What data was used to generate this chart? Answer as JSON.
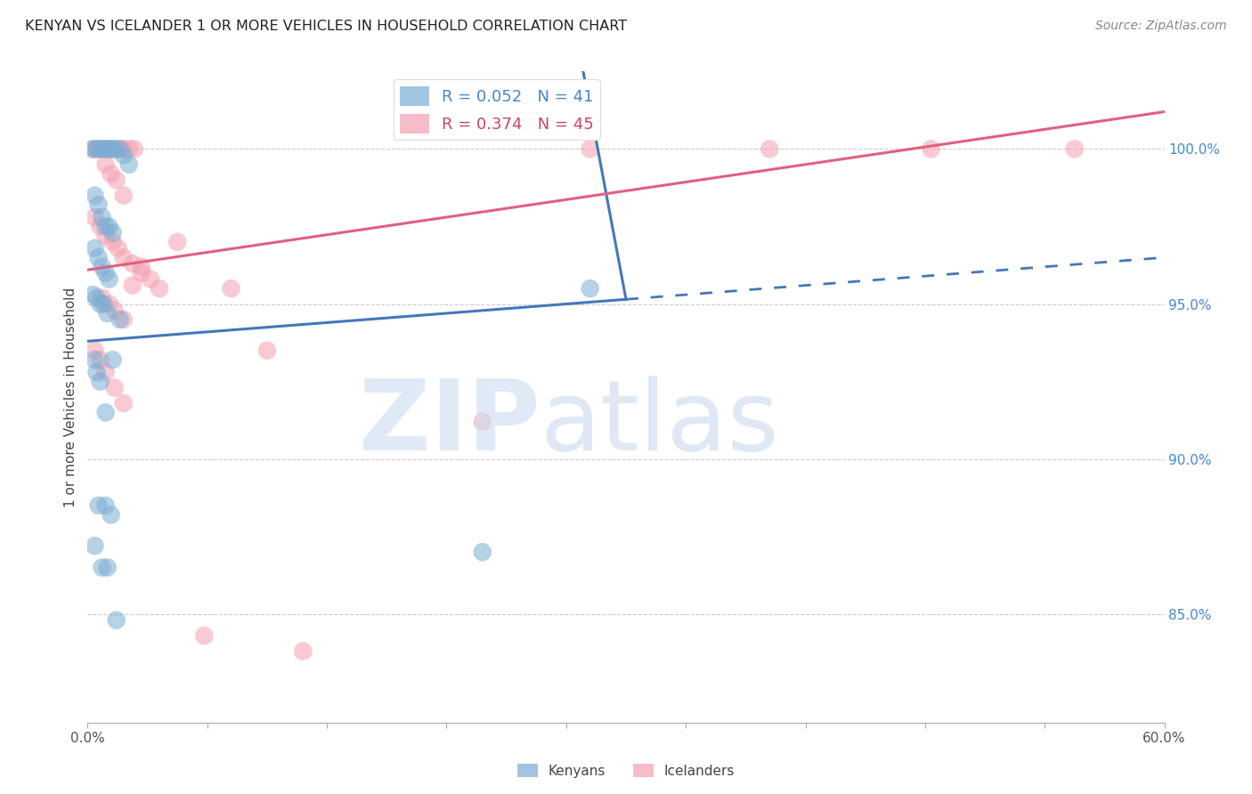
{
  "title": "KENYAN VS ICELANDER 1 OR MORE VEHICLES IN HOUSEHOLD CORRELATION CHART",
  "source": "Source: ZipAtlas.com",
  "ylabel": "1 or more Vehicles in Household",
  "ytick_values": [
    85.0,
    90.0,
    95.0,
    100.0
  ],
  "xmin": 0.0,
  "xmax": 60.0,
  "ymin": 81.5,
  "ymax": 102.5,
  "kenyan_color": "#7aadd4",
  "icelander_color": "#f5a0b0",
  "kenyan_line_color": "#4477bb",
  "icelander_line_color": "#e06080",
  "kenyan_R": 0.052,
  "kenyan_N": 41,
  "icelander_R": 0.374,
  "icelander_N": 45,
  "kenyan_line_x0": 0.0,
  "kenyan_line_y0": 93.8,
  "kenyan_line_x1": 60.0,
  "kenyan_line_y1": 96.5,
  "kenyan_solid_end": 30.0,
  "icelander_line_x0": 0.0,
  "icelander_line_y0": 96.1,
  "icelander_line_x1": 60.0,
  "icelander_line_y1": 101.2,
  "kenyan_x": [
    0.3,
    0.5,
    0.7,
    0.9,
    1.1,
    1.3,
    1.5,
    1.8,
    2.0,
    2.3,
    0.4,
    0.6,
    0.8,
    1.0,
    1.2,
    1.4,
    0.4,
    0.6,
    0.8,
    1.0,
    1.2,
    0.3,
    0.5,
    0.7,
    0.9,
    1.1,
    0.4,
    0.5,
    0.7,
    1.0,
    0.6,
    1.3,
    28.0,
    0.4,
    0.8,
    1.1,
    1.6,
    1.0,
    1.4,
    22.0,
    1.8
  ],
  "kenyan_y": [
    100.0,
    100.0,
    100.0,
    100.0,
    100.0,
    100.0,
    100.0,
    100.0,
    99.8,
    99.5,
    98.5,
    98.2,
    97.8,
    97.5,
    97.5,
    97.3,
    96.8,
    96.5,
    96.2,
    96.0,
    95.8,
    95.3,
    95.2,
    95.0,
    95.0,
    94.7,
    93.2,
    92.8,
    92.5,
    91.5,
    88.5,
    88.2,
    95.5,
    87.2,
    86.5,
    86.5,
    84.8,
    88.5,
    93.2,
    87.0,
    94.5
  ],
  "icelander_x": [
    0.3,
    0.5,
    0.8,
    1.0,
    1.2,
    1.5,
    1.8,
    2.0,
    2.3,
    2.6,
    1.0,
    1.3,
    1.6,
    2.0,
    0.4,
    0.7,
    1.0,
    1.4,
    1.7,
    2.0,
    2.5,
    3.0,
    3.5,
    4.0,
    0.8,
    1.2,
    1.5,
    2.0,
    0.4,
    0.7,
    1.0,
    1.5,
    2.0,
    22.0,
    28.0,
    38.0,
    47.0,
    55.0,
    10.0,
    8.0,
    5.0,
    3.0,
    2.5,
    6.5,
    12.0
  ],
  "icelander_y": [
    100.0,
    100.0,
    100.0,
    100.0,
    100.0,
    100.0,
    100.0,
    100.0,
    100.0,
    100.0,
    99.5,
    99.2,
    99.0,
    98.5,
    97.8,
    97.5,
    97.2,
    97.0,
    96.8,
    96.5,
    96.3,
    96.0,
    95.8,
    95.5,
    95.2,
    95.0,
    94.8,
    94.5,
    93.5,
    93.2,
    92.8,
    92.3,
    91.8,
    91.2,
    100.0,
    100.0,
    100.0,
    100.0,
    93.5,
    95.5,
    97.0,
    96.2,
    95.6,
    84.3,
    83.8
  ]
}
